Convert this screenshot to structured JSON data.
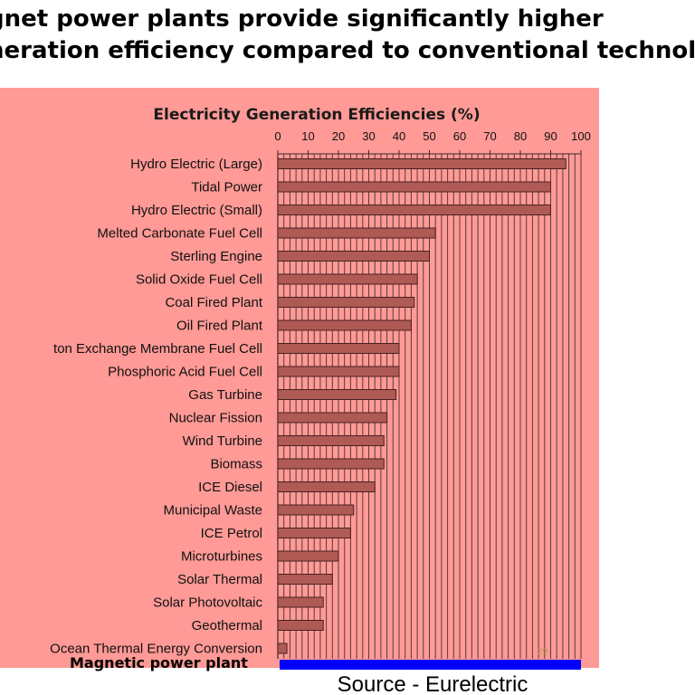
{
  "headline": {
    "line1": "gnet power plants provide significantly higher",
    "line2": "neration efficiency compared to conventional technolog"
  },
  "colors": {
    "panel_background": "#ff9a96",
    "bar_fill": "#b05a55",
    "grid_line": "#3b2a2a",
    "highlight_bar": "#0000ff"
  },
  "chart_data": {
    "type": "bar",
    "orientation": "horizontal",
    "title": "Electricity Generation Efficiencies (%)",
    "xlim": [
      0,
      100
    ],
    "x_ticks": [
      "0",
      "10",
      "20",
      "30",
      "40",
      "50",
      "60",
      "70",
      "80",
      "90",
      "100"
    ],
    "grid": true,
    "categories": [
      "Hydro Electric (Large)",
      "Tidal Power",
      "Hydro Electric (Small)",
      "Melted Carbonate Fuel Cell",
      "Sterling Engine",
      "Solid Oxide Fuel Cell",
      "Coal Fired Plant",
      "Oil Fired Plant",
      "ton Exchange Membrane Fuel Cell",
      "Phosphoric Acid Fuel Cell",
      "Gas Turbine",
      "Nuclear Fission",
      "Wind Turbine",
      "Biomass",
      "ICE Diesel",
      "Municipal Waste",
      "ICE Petrol",
      "Microturbines",
      "Solar Thermal",
      "Solar Photovoltaic",
      "Geothermal",
      "Ocean Thermal Energy Conversion"
    ],
    "values": [
      95,
      90,
      90,
      52,
      50,
      46,
      45,
      44,
      40,
      40,
      39,
      36,
      35,
      35,
      32,
      25,
      24,
      20,
      18,
      15,
      15,
      3
    ],
    "highlight": {
      "label": "Magnetic power plant",
      "value": 100
    }
  },
  "page_number": "29",
  "source": "Source - Eurelectric"
}
